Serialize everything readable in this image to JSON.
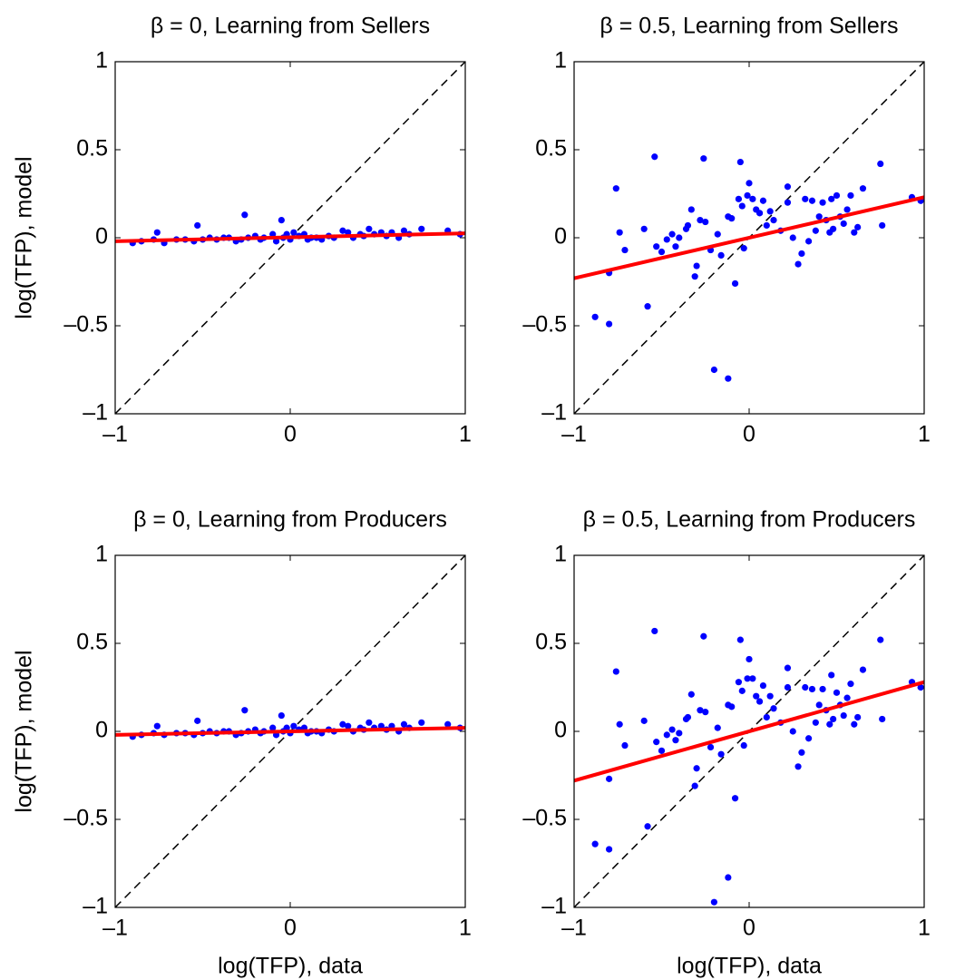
{
  "chart_data": [
    {
      "type": "scatter",
      "title": "β = 0, Learning from Sellers",
      "ylabel": "log(TFP), model",
      "xlim": [
        -1,
        1
      ],
      "ylim": [
        -1,
        1
      ],
      "xticks": [
        {
          "value": -1,
          "label": "–1"
        },
        0,
        1
      ],
      "yticks": [
        {
          "value": -1,
          "label": "–1"
        },
        {
          "value": -0.5,
          "label": "–0.5"
        },
        0,
        0.5,
        1
      ],
      "color": "#0000ff",
      "x": [
        -0.9,
        -0.85,
        -0.78,
        -0.76,
        -0.72,
        -0.65,
        -0.6,
        -0.55,
        -0.53,
        -0.5,
        -0.46,
        -0.42,
        -0.38,
        -0.35,
        -0.31,
        -0.28,
        -0.26,
        -0.24,
        -0.2,
        -0.17,
        -0.15,
        -0.1,
        -0.08,
        -0.05,
        -0.04,
        -0.02,
        0,
        0.02,
        0.05,
        0.08,
        0.1,
        0.12,
        0.15,
        0.18,
        0.22,
        0.25,
        0.3,
        0.33,
        0.36,
        0.4,
        0.42,
        0.45,
        0.48,
        0.52,
        0.55,
        0.58,
        0.62,
        0.65,
        0.68,
        0.75,
        0.9,
        0.97
      ],
      "y": [
        -0.03,
        -0.02,
        -0.01,
        0.03,
        -0.03,
        -0.01,
        -0.01,
        -0.02,
        0.07,
        -0.01,
        0,
        -0.01,
        0,
        0,
        -0.02,
        -0.01,
        0.13,
        0,
        0.01,
        -0.01,
        0,
        0.02,
        -0.02,
        0.1,
        0,
        0.02,
        -0.01,
        0.03,
        0.01,
        0.02,
        -0.01,
        0,
        0,
        -0.01,
        0.01,
        0,
        0.04,
        0.03,
        0,
        0.02,
        0.01,
        0.05,
        0.02,
        0.03,
        0.01,
        0.03,
        0,
        0.04,
        0.02,
        0.05,
        0.04,
        0.02
      ],
      "fit": {
        "x": [
          -1,
          1
        ],
        "y": [
          -0.02,
          0.025
        ],
        "color": "#ff0000"
      },
      "reference": {
        "x": [
          -1,
          1
        ],
        "y": [
          -1,
          1
        ],
        "color": "#000000"
      }
    },
    {
      "type": "scatter",
      "title": "β = 0.5, Learning from Sellers",
      "xlim": [
        -1,
        1
      ],
      "ylim": [
        -1,
        1
      ],
      "xticks": [
        {
          "value": -1,
          "label": "–1"
        },
        0,
        1
      ],
      "yticks": [
        {
          "value": -1,
          "label": "–1"
        },
        {
          "value": -0.5,
          "label": "–0.5"
        },
        0,
        0.5,
        1
      ],
      "color": "#0000ff",
      "x": [
        -0.88,
        -0.8,
        -0.8,
        -0.76,
        -0.74,
        -0.71,
        -0.6,
        -0.58,
        -0.54,
        -0.53,
        -0.5,
        -0.47,
        -0.44,
        -0.42,
        -0.4,
        -0.36,
        -0.35,
        -0.33,
        -0.31,
        -0.3,
        -0.28,
        -0.26,
        -0.25,
        -0.22,
        -0.2,
        -0.18,
        -0.16,
        -0.12,
        -0.12,
        -0.1,
        -0.08,
        -0.06,
        -0.05,
        -0.04,
        -0.03,
        -0.01,
        0,
        0.02,
        0.04,
        0.06,
        0.08,
        0.1,
        0.12,
        0.14,
        0.18,
        0.22,
        0.22,
        0.25,
        0.28,
        0.3,
        0.32,
        0.34,
        0.36,
        0.38,
        0.4,
        0.42,
        0.44,
        0.46,
        0.47,
        0.48,
        0.5,
        0.52,
        0.54,
        0.56,
        0.58,
        0.6,
        0.62,
        0.65,
        0.75,
        0.76,
        0.93,
        0.98
      ],
      "y": [
        -0.45,
        -0.49,
        -0.2,
        0.28,
        0.03,
        -0.07,
        0.05,
        -0.39,
        0.46,
        -0.05,
        -0.08,
        -0.01,
        0.02,
        -0.05,
        0,
        0.05,
        0.07,
        0.16,
        -0.22,
        -0.16,
        0.1,
        0.45,
        0.09,
        -0.07,
        -0.75,
        0.02,
        -0.1,
        -0.8,
        0.12,
        0.11,
        -0.26,
        0.22,
        0.43,
        0.18,
        -0.06,
        0.24,
        0.31,
        0.22,
        0.16,
        0.14,
        0.21,
        0.07,
        0.15,
        0.1,
        0.04,
        0.2,
        0.29,
        0,
        -0.15,
        -0.09,
        0.22,
        -0.02,
        0.21,
        0.04,
        0.12,
        0.2,
        0.1,
        0.03,
        0.22,
        0.05,
        0.24,
        0.12,
        0.08,
        0.16,
        0.24,
        0.03,
        0.06,
        0.28,
        0.42,
        0.07,
        0.23,
        0.21
      ],
      "fit": {
        "x": [
          -1,
          1
        ],
        "y": [
          -0.23,
          0.23
        ],
        "color": "#ff0000"
      },
      "reference": {
        "x": [
          -1,
          1
        ],
        "y": [
          -1,
          1
        ],
        "color": "#000000"
      }
    },
    {
      "type": "scatter",
      "title": "β = 0, Learning from Producers",
      "ylabel": "log(TFP), model",
      "xlabel": "log(TFP), data",
      "xlim": [
        -1,
        1
      ],
      "ylim": [
        -1,
        1
      ],
      "xticks": [
        {
          "value": -1,
          "label": "–1"
        },
        0,
        1
      ],
      "yticks": [
        {
          "value": -1,
          "label": "–1"
        },
        {
          "value": -0.5,
          "label": "–0.5"
        },
        0,
        0.5,
        1
      ],
      "color": "#0000ff",
      "x": [
        -0.9,
        -0.85,
        -0.78,
        -0.76,
        -0.72,
        -0.65,
        -0.6,
        -0.55,
        -0.53,
        -0.5,
        -0.46,
        -0.42,
        -0.38,
        -0.35,
        -0.31,
        -0.28,
        -0.26,
        -0.24,
        -0.2,
        -0.17,
        -0.15,
        -0.1,
        -0.08,
        -0.05,
        -0.04,
        -0.02,
        0,
        0.02,
        0.05,
        0.08,
        0.1,
        0.12,
        0.15,
        0.18,
        0.22,
        0.25,
        0.3,
        0.33,
        0.36,
        0.4,
        0.42,
        0.45,
        0.48,
        0.52,
        0.55,
        0.58,
        0.62,
        0.65,
        0.68,
        0.75,
        0.9,
        0.97
      ],
      "y": [
        -0.03,
        -0.02,
        -0.01,
        0.03,
        -0.02,
        -0.01,
        -0.01,
        -0.02,
        0.06,
        -0.01,
        0,
        -0.01,
        0,
        0,
        -0.02,
        -0.01,
        0.12,
        0,
        0.01,
        -0.01,
        0,
        0.02,
        -0.02,
        0.09,
        0,
        0.02,
        -0.01,
        0.03,
        0.01,
        0.02,
        -0.01,
        0,
        0,
        -0.01,
        0.01,
        0,
        0.04,
        0.03,
        0,
        0.02,
        0.01,
        0.05,
        0.02,
        0.03,
        0.01,
        0.03,
        0,
        0.04,
        0.02,
        0.05,
        0.04,
        0.02
      ],
      "fit": {
        "x": [
          -1,
          1
        ],
        "y": [
          -0.02,
          0.02
        ],
        "color": "#ff0000"
      },
      "reference": {
        "x": [
          -1,
          1
        ],
        "y": [
          -1,
          1
        ],
        "color": "#000000"
      }
    },
    {
      "type": "scatter",
      "title": "β = 0.5, Learning from Producers",
      "xlabel": "log(TFP), data",
      "xlim": [
        -1,
        1
      ],
      "ylim": [
        -1,
        1
      ],
      "xticks": [
        {
          "value": -1,
          "label": "–1"
        },
        0,
        1
      ],
      "yticks": [
        {
          "value": -1,
          "label": "–1"
        },
        {
          "value": -0.5,
          "label": "–0.5"
        },
        0,
        0.5,
        1
      ],
      "color": "#0000ff",
      "x": [
        -0.88,
        -0.8,
        -0.8,
        -0.76,
        -0.74,
        -0.71,
        -0.6,
        -0.58,
        -0.54,
        -0.53,
        -0.5,
        -0.47,
        -0.44,
        -0.42,
        -0.4,
        -0.36,
        -0.35,
        -0.33,
        -0.31,
        -0.3,
        -0.28,
        -0.26,
        -0.25,
        -0.22,
        -0.2,
        -0.18,
        -0.16,
        -0.12,
        -0.12,
        -0.1,
        -0.08,
        -0.06,
        -0.05,
        -0.04,
        -0.03,
        -0.01,
        0,
        0.02,
        0.04,
        0.06,
        0.08,
        0.1,
        0.12,
        0.14,
        0.18,
        0.22,
        0.22,
        0.25,
        0.28,
        0.3,
        0.32,
        0.34,
        0.36,
        0.38,
        0.4,
        0.42,
        0.44,
        0.46,
        0.47,
        0.48,
        0.5,
        0.52,
        0.54,
        0.56,
        0.58,
        0.6,
        0.62,
        0.65,
        0.75,
        0.76,
        0.93,
        0.98
      ],
      "y": [
        -0.64,
        -0.67,
        -0.27,
        0.34,
        0.04,
        -0.08,
        0.06,
        -0.54,
        0.57,
        -0.06,
        -0.11,
        -0.02,
        0.01,
        -0.05,
        -0.01,
        0.07,
        0.08,
        0.21,
        -0.31,
        -0.21,
        0.12,
        0.54,
        0.11,
        -0.09,
        -0.97,
        0.02,
        -0.13,
        -0.83,
        0.15,
        0.14,
        -0.38,
        0.28,
        0.52,
        0.23,
        -0.08,
        0.3,
        0.41,
        0.3,
        0.2,
        0.17,
        0.26,
        0.08,
        0.2,
        0.13,
        0.05,
        0.25,
        0.36,
        0,
        -0.2,
        -0.12,
        0.25,
        -0.04,
        0.24,
        0.05,
        0.15,
        0.24,
        0.12,
        0.04,
        0.32,
        0.07,
        0.22,
        0.15,
        0.09,
        0.19,
        0.27,
        0.04,
        0.08,
        0.35,
        0.52,
        0.07,
        0.28,
        0.25
      ],
      "fit": {
        "x": [
          -1,
          1
        ],
        "y": [
          -0.28,
          0.28
        ],
        "color": "#ff0000"
      },
      "reference": {
        "x": [
          -1,
          1
        ],
        "y": [
          -1,
          1
        ],
        "color": "#000000"
      }
    }
  ]
}
